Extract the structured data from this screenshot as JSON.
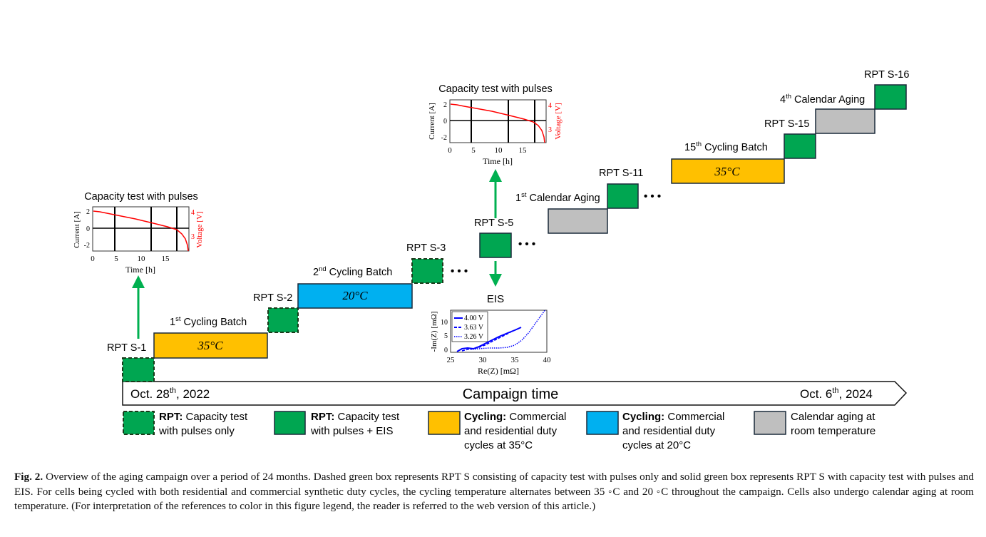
{
  "timeline": {
    "start": "Oct. 28",
    "start_sup": "th",
    "start_year": ", 2022",
    "title": "Campaign time",
    "end": "Oct. 6",
    "end_sup": "th",
    "end_year": ", 2024"
  },
  "rpt_labels": {
    "s1": "RPT S-1",
    "s2": "RPT S-2",
    "s3": "RPT S-3",
    "s5": "RPT S-5",
    "s11": "RPT S-11",
    "s15": "RPT S-15",
    "s16": "RPT S-16"
  },
  "phases": {
    "batch1": {
      "ordinal": "1",
      "sup": "st",
      "label": " Cycling Batch",
      "temp": "35°C"
    },
    "batch2": {
      "ordinal": "2",
      "sup": "nd",
      "label": " Cycling Batch",
      "temp": "20°C"
    },
    "batch15": {
      "ordinal": "15",
      "sup": "th",
      "label": " Cycling Batch",
      "temp": "35°C"
    },
    "cal1": {
      "ordinal": "1",
      "sup": "st",
      "label": " Calendar Aging"
    },
    "cal4": {
      "ordinal": "4",
      "sup": "th",
      "label": " Calendar Aging"
    }
  },
  "ellipsis": "• • •",
  "capacity_plot": {
    "title": "Capacity test with pulses",
    "ylabel_left": "Current [A]",
    "ylabel_right": "Voltage [V]",
    "xlabel": "Time [h]",
    "xticks": [
      "0",
      "5",
      "10",
      "15"
    ],
    "yticks_left": [
      "2",
      "0",
      "-2"
    ],
    "yticks_right": [
      "4",
      "3"
    ]
  },
  "eis_plot": {
    "title": "EIS",
    "ylabel": "-Im(Z) [mΩ]",
    "xlabel": "Re(Z) [mΩ]",
    "xticks": [
      "25",
      "30",
      "35",
      "40"
    ],
    "yticks": [
      "10",
      "5",
      "0"
    ],
    "legend": [
      "4.00 V",
      "3.63 V",
      "3.26 V"
    ]
  },
  "legend": {
    "rpt_dashed": {
      "bold": "RPT:",
      "text1": " Capacity test",
      "text2": "with pulses only"
    },
    "rpt_solid": {
      "bold": "RPT:",
      "text1": " Capacity test",
      "text2": "with pulses + EIS"
    },
    "cycling35": {
      "bold": "Cycling:",
      "text1": " Commercial",
      "text2": "and residential duty",
      "text3": "cycles at 35°C"
    },
    "cycling20": {
      "bold": "Cycling:",
      "text1": " Commercial",
      "text2": "and residential duty",
      "text3": "cycles at 20°C"
    },
    "calendar": {
      "text1": "Calendar aging at",
      "text2": "room temperature"
    }
  },
  "colors": {
    "rpt_green": "#00a651",
    "cycling35": "#ffc000",
    "cycling20": "#00b0f0",
    "calendar": "#bfbfbf",
    "arrow_green": "#00b050",
    "voltage_red": "#ff0000",
    "eis_blue": "#0000ff"
  },
  "caption": {
    "label": "Fig. 2.",
    "text": " Overview of the aging campaign over a period of 24 months. Dashed green box represents RPT S consisting of capacity test with pulses only and solid green box represents RPT S with capacity test with pulses and EIS. For cells being cycled with both residential and commercial synthetic duty cycles, the cycling temperature alternates between 35 ◦C and 20 ◦C throughout the campaign. Cells also undergo calendar aging at room temperature. (For interpretation of the references to color in this figure legend, the reader is referred to the web version of this article.)"
  }
}
